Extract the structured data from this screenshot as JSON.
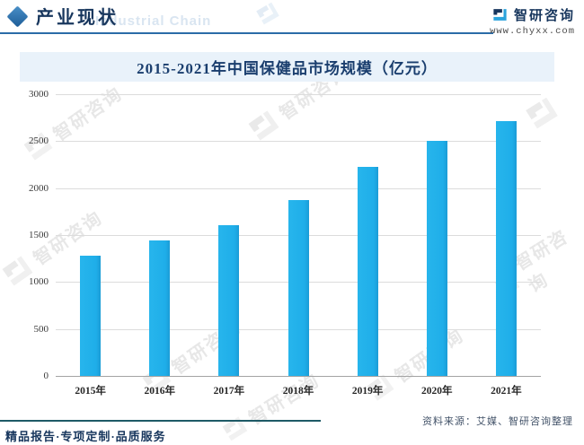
{
  "header": {
    "title": "产业现状",
    "watermark": "Industrial Chain",
    "brand": "智研咨询",
    "website": "www.chyxx.com",
    "accent_color": "#2b6ca8"
  },
  "chart_data": {
    "type": "bar",
    "title": "2015-2021年中国保健品市场规模（亿元）",
    "categories": [
      "2015年",
      "2016年",
      "2017年",
      "2018年",
      "2019年",
      "2020年",
      "2021年"
    ],
    "values": [
      1280,
      1440,
      1610,
      1870,
      2230,
      2500,
      2710
    ],
    "xlabel": "",
    "ylabel": "",
    "ylim": [
      0,
      3000
    ],
    "ytick_step": 500,
    "grid": true,
    "legend": "none",
    "bar_color": "#1faee9"
  },
  "footer": {
    "services": "精品报告·专项定制·品质服务",
    "source": "资料来源：艾媒、智研咨询整理"
  },
  "watermark": {
    "brand": "智研咨询"
  }
}
